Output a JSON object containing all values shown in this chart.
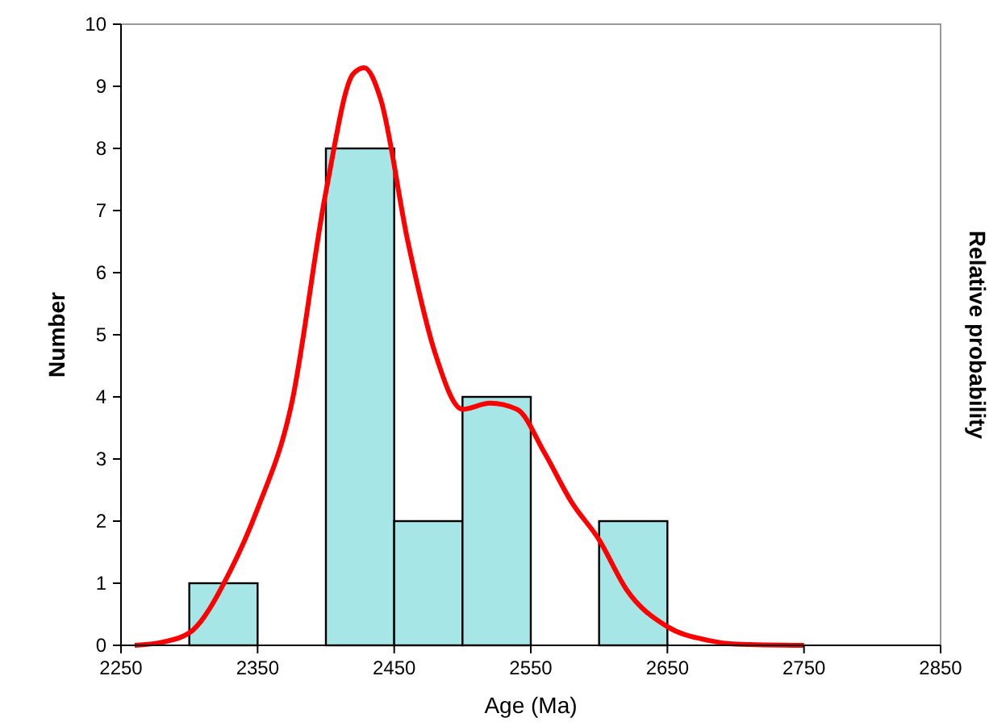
{
  "chart_data": {
    "type": "histogram",
    "xlabel": "Age (Ma)",
    "ylabel": "Number",
    "y2label": "Relative probability",
    "bins": [
      2300,
      2350,
      2400,
      2450,
      2500,
      2550,
      2600,
      2650
    ],
    "values": [
      1,
      0,
      8,
      2,
      4,
      0,
      2
    ],
    "color": "#a6e6e6",
    "series": [
      {
        "type": "line",
        "color": "#ff0000",
        "x": [
          2260,
          2280,
          2300,
          2330,
          2350,
          2375,
          2400,
          2420,
          2428,
          2440,
          2460,
          2480,
          2500,
          2520,
          2540,
          2560,
          2580,
          2600,
          2620,
          2650,
          2680,
          2700,
          2750
        ],
        "values": [
          0,
          0.05,
          0.2,
          1.2,
          2.2,
          3.9,
          7.3,
          9.2,
          9.3,
          8.8,
          6.5,
          4.7,
          3.8,
          3.9,
          3.8,
          3.1,
          2.3,
          1.7,
          0.9,
          0.3,
          0.08,
          0.02,
          0
        ]
      }
    ],
    "xlim": [
      2250,
      2850
    ],
    "xticks": [
      2250,
      2350,
      2450,
      2550,
      2650,
      2750,
      2850
    ],
    "ylim": [
      0,
      10
    ],
    "yticks": [
      0,
      1,
      2,
      3,
      4,
      5,
      6,
      7,
      8,
      9,
      10
    ],
    "grid": false,
    "line_style": "solid",
    "marker": "none"
  }
}
